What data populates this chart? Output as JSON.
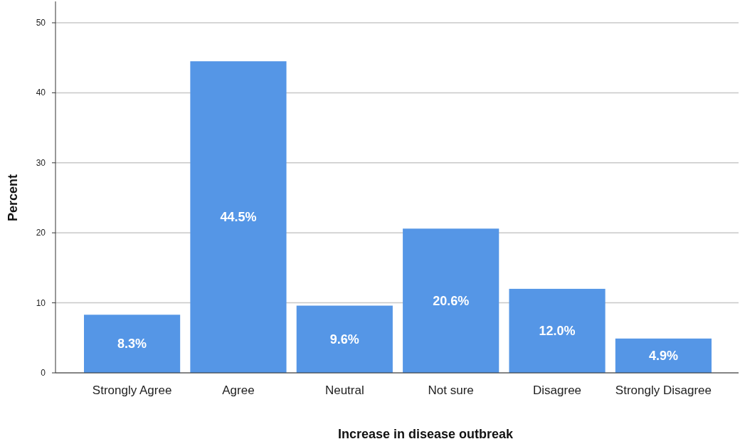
{
  "chart_data": {
    "type": "bar",
    "xlabel": "Increase in disease outbreak",
    "ylabel": "Percent",
    "categories": [
      "Strongly Agree",
      "Agree",
      "Neutral",
      "Not sure",
      "Disagree",
      "Strongly Disagree"
    ],
    "values": [
      8.3,
      44.5,
      9.6,
      20.6,
      12.0,
      4.9
    ],
    "value_labels": [
      "8.3%",
      "44.5%",
      "9.6%",
      "20.6%",
      "12.0%",
      "4.9%"
    ],
    "color": "#5596e6",
    "ylim": [
      0,
      50
    ],
    "yticks": [
      0,
      10,
      20,
      30,
      40,
      50
    ],
    "grid": "y"
  }
}
